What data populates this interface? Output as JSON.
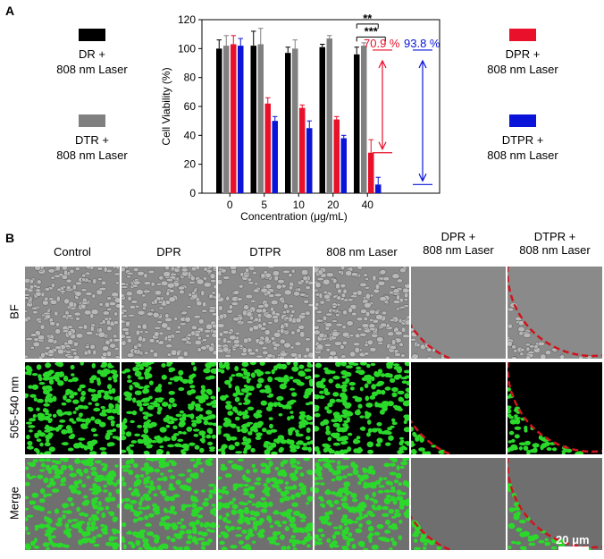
{
  "panel_a": {
    "letter": "A",
    "legend": [
      {
        "line1": "DR +",
        "line2": "808 nm Laser",
        "color": "#000000"
      },
      {
        "line1": "DTR +",
        "line2": "808 nm Laser",
        "color": "#808080"
      },
      {
        "line1": "DPR +",
        "line2": "808 nm Laser",
        "color": "#e8102a"
      },
      {
        "line1": "DTPR +",
        "line2": "808 nm Laser",
        "color": "#0a14d8"
      }
    ]
  },
  "chart_data": {
    "type": "bar",
    "categories": [
      "0",
      "5",
      "10",
      "20",
      "40"
    ],
    "xlabel": "Concentration (μg/mL)",
    "ylabel": "Cell Viability (%)",
    "ylim": [
      0,
      120
    ],
    "yticks": [
      "0",
      "20",
      "40",
      "60",
      "80",
      "100",
      "120"
    ],
    "series": [
      {
        "name": "DR + 808 nm Laser",
        "color": "#000000",
        "values": [
          100,
          102,
          97,
          101,
          96
        ],
        "errors": [
          6,
          10,
          4,
          2,
          5
        ]
      },
      {
        "name": "DTR + 808 nm Laser",
        "color": "#808080",
        "values": [
          102,
          103,
          100,
          107,
          102
        ],
        "errors": [
          7,
          11,
          6,
          2,
          2
        ]
      },
      {
        "name": "DPR + 808 nm Laser",
        "color": "#e8102a",
        "values": [
          103,
          62,
          59,
          51,
          28
        ],
        "errors": [
          6,
          4,
          2,
          2,
          9
        ]
      },
      {
        "name": "DTPR + 808 nm Laser",
        "color": "#0a14d8",
        "values": [
          102,
          50,
          45,
          38,
          6
        ],
        "errors": [
          5,
          3,
          5,
          2,
          5
        ]
      }
    ],
    "significance": [
      {
        "label": "**",
        "from_series": 0,
        "to_series": 2,
        "category": 4,
        "level": 117
      },
      {
        "label": "***",
        "from_series": 0,
        "to_series": 3,
        "category": 4,
        "level": 108
      }
    ],
    "annotations": [
      {
        "text": "70.9 %",
        "color": "#e8102a",
        "top": 99,
        "bottom": 28
      },
      {
        "text": "93.8 %",
        "color": "#0a14d8",
        "top": 99,
        "bottom": 6
      }
    ]
  },
  "panel_b": {
    "letter": "B",
    "columns": [
      {
        "line1": "Control",
        "line2": ""
      },
      {
        "line1": "DPR",
        "line2": ""
      },
      {
        "line1": "DTPR",
        "line2": ""
      },
      {
        "line1": "808 nm Laser",
        "line2": ""
      },
      {
        "line1": "DPR +",
        "line2": "808 nm Laser"
      },
      {
        "line1": "DTPR +",
        "line2": "808 nm Laser"
      }
    ],
    "rows": [
      "BF",
      "505-540 nm",
      "Merge"
    ],
    "scale_bar": "20 μm"
  }
}
